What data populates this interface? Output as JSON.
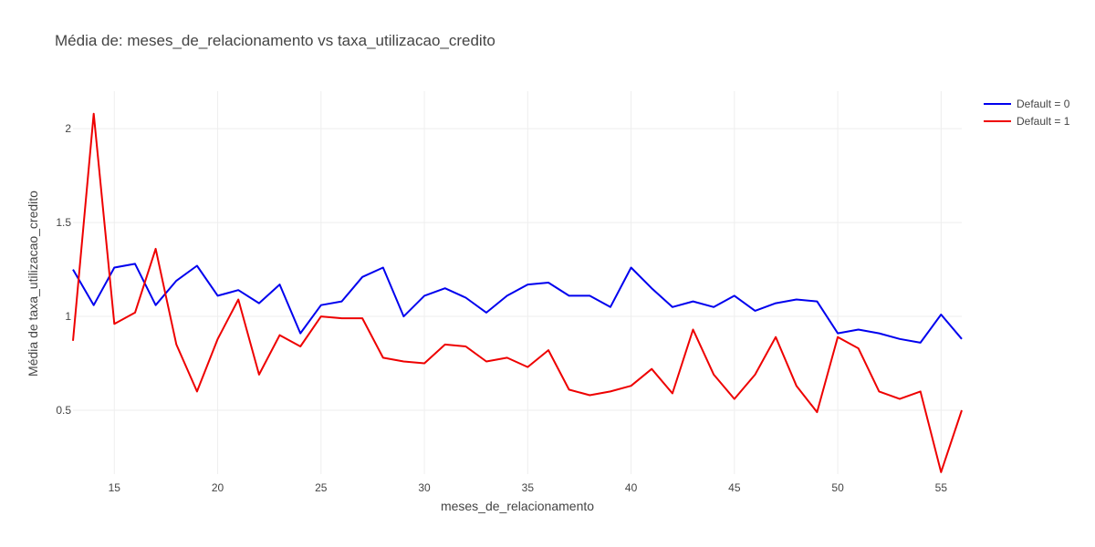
{
  "chart_data": {
    "type": "line",
    "title": "Média de: meses_de_relacionamento vs taxa_utilizacao_credito",
    "xlabel": "meses_de_relacionamento",
    "ylabel": "Média de taxa_utilizacao_credito",
    "xlim": [
      13,
      56
    ],
    "ylim": [
      0.16,
      2.2
    ],
    "x_ticks": [
      15,
      20,
      25,
      30,
      35,
      40,
      45,
      50,
      55
    ],
    "y_ticks": [
      0.5,
      1,
      1.5,
      2
    ],
    "y_tick_labels": [
      "0.5",
      "1",
      "1.5",
      "2"
    ],
    "grid": true,
    "legend_position": "top-right",
    "x": [
      13,
      14,
      15,
      16,
      17,
      18,
      19,
      20,
      21,
      22,
      23,
      24,
      25,
      26,
      27,
      28,
      29,
      30,
      31,
      32,
      33,
      34,
      35,
      36,
      37,
      38,
      39,
      40,
      41,
      42,
      43,
      44,
      45,
      46,
      47,
      48,
      49,
      50,
      51,
      52,
      53,
      54,
      55,
      56
    ],
    "series": [
      {
        "name": "Default = 0",
        "color": "#0000ee",
        "values": [
          1.25,
          1.06,
          1.26,
          1.28,
          1.06,
          1.19,
          1.27,
          1.11,
          1.14,
          1.07,
          1.17,
          0.91,
          1.06,
          1.08,
          1.21,
          1.26,
          1.0,
          1.11,
          1.15,
          1.1,
          1.02,
          1.11,
          1.17,
          1.18,
          1.11,
          1.11,
          1.05,
          1.26,
          1.15,
          1.05,
          1.08,
          1.05,
          1.11,
          1.03,
          1.07,
          1.09,
          1.08,
          0.91,
          0.93,
          0.91,
          0.88,
          0.86,
          1.01,
          0.88
        ]
      },
      {
        "name": "Default = 1",
        "color": "#ee0000",
        "values": [
          0.87,
          2.08,
          0.96,
          1.02,
          1.36,
          0.85,
          0.6,
          0.88,
          1.09,
          0.69,
          0.9,
          0.84,
          1.0,
          0.99,
          0.99,
          0.78,
          0.76,
          0.75,
          0.85,
          0.84,
          0.76,
          0.78,
          0.73,
          0.82,
          0.61,
          0.58,
          0.6,
          0.63,
          0.72,
          0.59,
          0.93,
          0.69,
          0.56,
          0.69,
          0.89,
          0.63,
          0.49,
          0.89,
          0.83,
          0.6,
          0.56,
          0.6,
          0.17,
          0.5
        ]
      }
    ]
  }
}
